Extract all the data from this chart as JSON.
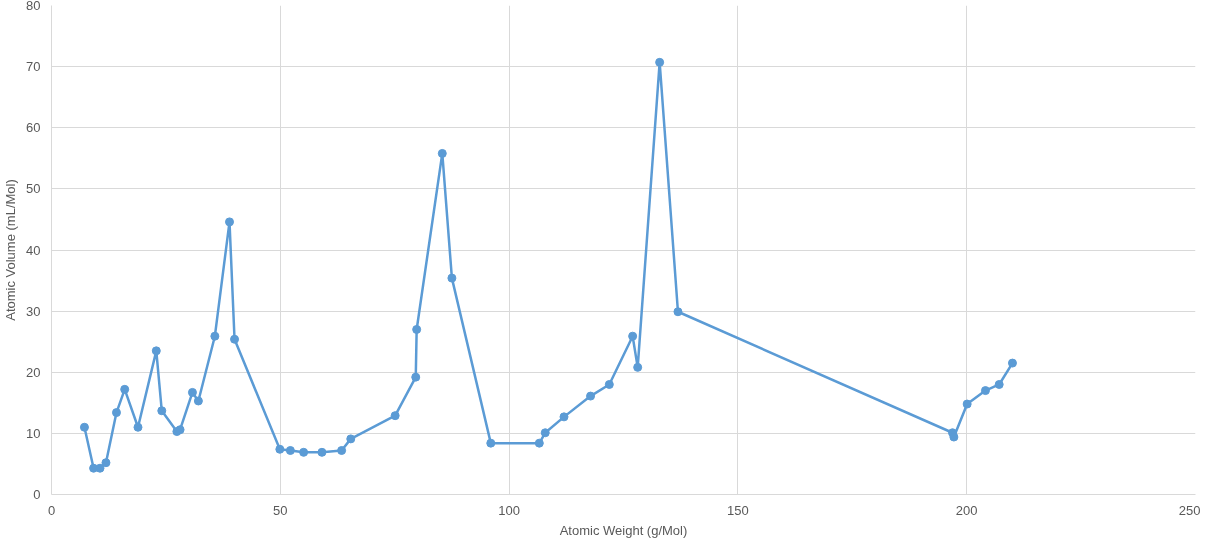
{
  "chart_data": {
    "type": "line",
    "xlabel": "Atomic Weight (g/Mol)",
    "ylabel": "Atomic Volume (mL/Mol)",
    "x": [
      7.2,
      9.2,
      10.6,
      11.9,
      14.2,
      16.0,
      18.9,
      22.9,
      24.1,
      27.4,
      28.1,
      30.8,
      32.1,
      35.7,
      38.9,
      40.0,
      49.9,
      52.2,
      55.1,
      59.1,
      63.4,
      65.4,
      75.1,
      79.6,
      79.8,
      85.4,
      87.5,
      96.0,
      106.6,
      107.9,
      112.0,
      117.8,
      121.9,
      127.0,
      128.1,
      132.9,
      136.9,
      196.9,
      197.2,
      200.1,
      204.1,
      207.1,
      210.0
    ],
    "series": [
      {
        "color": "#5b9bd5",
        "values": [
          11.0,
          4.3,
          4.3,
          5.2,
          13.4,
          17.2,
          11.0,
          23.5,
          13.7,
          10.3,
          10.6,
          16.7,
          15.3,
          25.9,
          44.6,
          25.4,
          7.4,
          7.2,
          6.9,
          6.9,
          7.2,
          9.1,
          12.9,
          19.2,
          27.0,
          55.8,
          35.4,
          8.4,
          8.4,
          10.1,
          12.7,
          16.1,
          18.0,
          25.9,
          20.8,
          70.7,
          29.9,
          10.1,
          9.4,
          14.8,
          17.0,
          18.0,
          21.5
        ]
      }
    ],
    "xlim": [
      0,
      250
    ],
    "xticks": [
      0,
      50,
      100,
      150,
      200,
      250
    ],
    "ylim": [
      0,
      80
    ],
    "yticks": [
      0,
      10,
      20,
      30,
      40,
      50,
      60,
      70,
      80
    ],
    "grid": true,
    "marker": "circle",
    "line_style": "solid"
  }
}
